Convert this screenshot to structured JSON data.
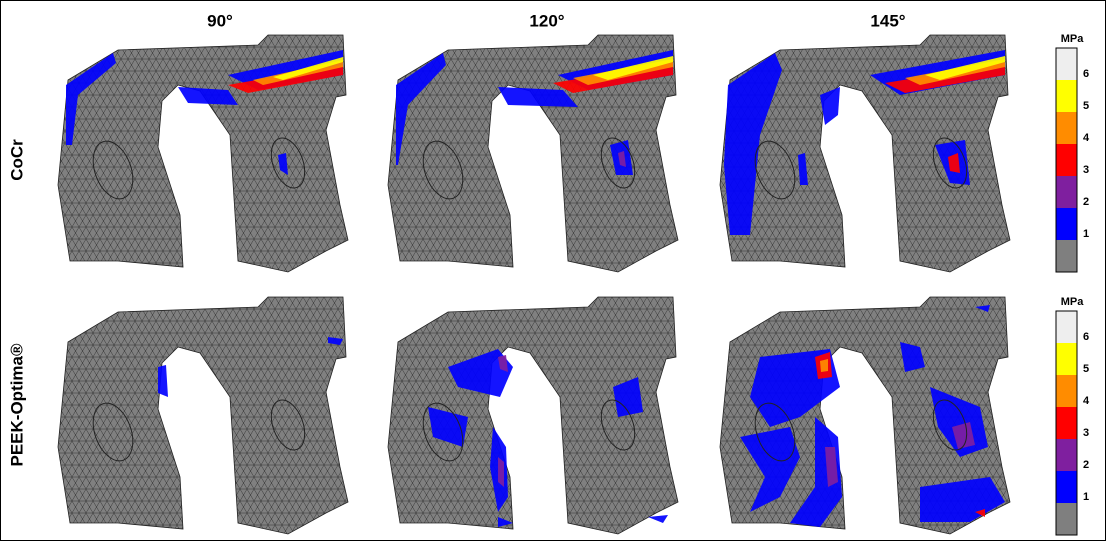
{
  "columns": [
    "90°",
    "120°",
    "145°"
  ],
  "rows": [
    "CoCr",
    "PEEK-Optima®"
  ],
  "colorbars": [
    {
      "unit": "MPa",
      "ticks": [
        1,
        2,
        3,
        4,
        5,
        6
      ],
      "colors": [
        "#7f7f7f",
        "#0000ff",
        "#7f1f9f",
        "#ff0000",
        "#ff8c00",
        "#ffff00",
        "#eeeeee"
      ]
    },
    {
      "unit": "MPa",
      "ticks": [
        1,
        2,
        3,
        4,
        5,
        6
      ],
      "colors": [
        "#7f7f7f",
        "#0000ff",
        "#7f1f9f",
        "#ff0000",
        "#ff8c00",
        "#ffff00",
        "#eeeeee"
      ]
    }
  ]
}
